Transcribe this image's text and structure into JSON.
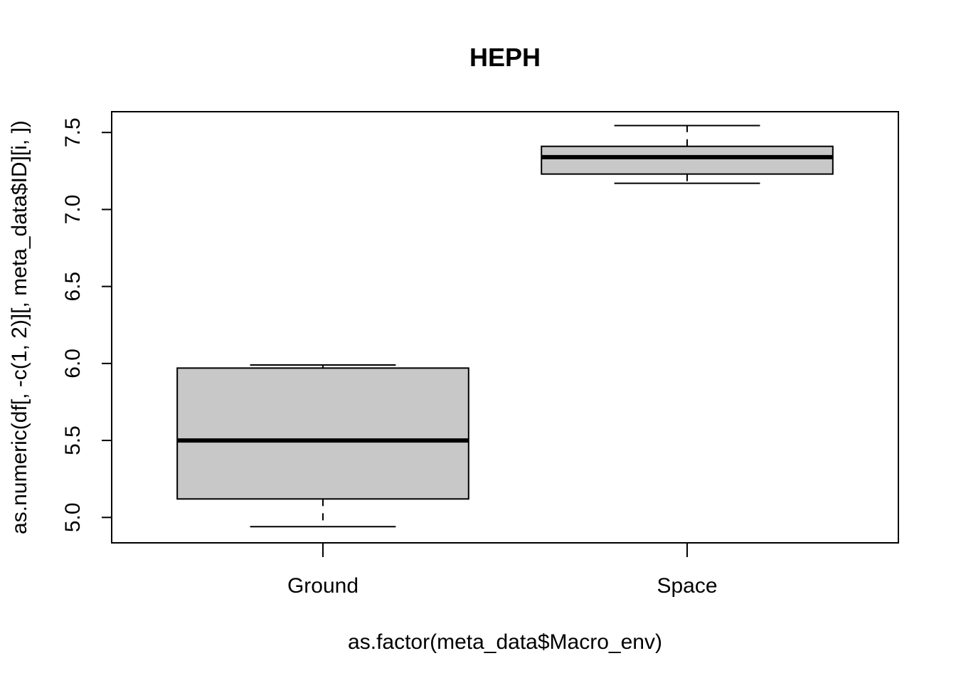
{
  "chart_data": {
    "type": "box",
    "title": "HEPH",
    "xlabel": "as.factor(meta_data$Macro_env)",
    "ylabel": "as.numeric(df[, -c(1, 2)][, meta_data$ID][i, ])",
    "ylim": [
      4.835,
      7.635
    ],
    "y_ticks": [
      5.0,
      5.5,
      6.0,
      6.5,
      7.0,
      7.5
    ],
    "y_tick_labels": [
      "5.0",
      "5.5",
      "6.0",
      "6.5",
      "7.0",
      "7.5"
    ],
    "grid": false,
    "legend": "none",
    "box_fill": "#c8c8c8",
    "categories": [
      "Ground",
      "Space"
    ],
    "boxes": [
      {
        "category": "Ground",
        "whisker_low": 4.94,
        "q1": 5.12,
        "median": 5.5,
        "q3": 5.97,
        "whisker_high": 5.99
      },
      {
        "category": "Space",
        "whisker_low": 7.17,
        "q1": 7.23,
        "median": 7.34,
        "q3": 7.41,
        "whisker_high": 7.545
      }
    ]
  }
}
